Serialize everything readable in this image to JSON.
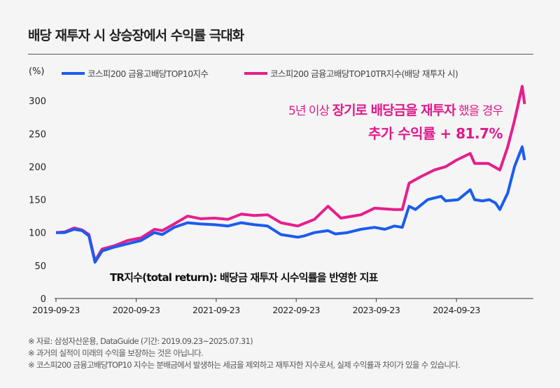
{
  "title": "배당 재투자 시 상승장에서 수익률 극대화",
  "chart_data": {
    "type": "line",
    "unit_label": "(%)",
    "ylim": [
      0,
      320
    ],
    "yticks": [
      0,
      50,
      100,
      150,
      200,
      250,
      300
    ],
    "xticks": [
      "2019-09-23",
      "2020-09-23",
      "2021-09-23",
      "2022-09-23",
      "2023-09-23",
      "2024-09-23"
    ],
    "xrange": [
      "2019-09-23",
      "2025-07-31"
    ],
    "grid": false,
    "legend": "top",
    "series": [
      {
        "name": "코스피200 금융고배당TOP10지수",
        "color": "#1a5cf0",
        "points": [
          [
            "2019-09-23",
            100
          ],
          [
            "2019-11-01",
            100
          ],
          [
            "2019-12-15",
            105
          ],
          [
            "2020-01-20",
            103
          ],
          [
            "2020-02-20",
            95
          ],
          [
            "2020-03-19",
            55
          ],
          [
            "2020-04-20",
            72
          ],
          [
            "2020-06-15",
            78
          ],
          [
            "2020-08-15",
            83
          ],
          [
            "2020-10-15",
            88
          ],
          [
            "2020-12-15",
            100
          ],
          [
            "2021-01-20",
            97
          ],
          [
            "2021-03-15",
            108
          ],
          [
            "2021-05-15",
            115
          ],
          [
            "2021-07-15",
            113
          ],
          [
            "2021-09-15",
            112
          ],
          [
            "2021-11-15",
            110
          ],
          [
            "2022-01-15",
            115
          ],
          [
            "2022-03-15",
            112
          ],
          [
            "2022-05-15",
            110
          ],
          [
            "2022-07-15",
            97
          ],
          [
            "2022-09-30",
            93
          ],
          [
            "2022-10-30",
            95
          ],
          [
            "2022-12-15",
            100
          ],
          [
            "2023-02-15",
            103
          ],
          [
            "2023-03-20",
            98
          ],
          [
            "2023-05-15",
            100
          ],
          [
            "2023-07-15",
            105
          ],
          [
            "2023-09-15",
            108
          ],
          [
            "2023-11-01",
            105
          ],
          [
            "2023-12-15",
            110
          ],
          [
            "2024-01-20",
            108
          ],
          [
            "2024-02-20",
            140
          ],
          [
            "2024-03-20",
            135
          ],
          [
            "2024-05-15",
            150
          ],
          [
            "2024-07-15",
            155
          ],
          [
            "2024-08-05",
            148
          ],
          [
            "2024-10-01",
            150
          ],
          [
            "2024-11-25",
            165
          ],
          [
            "2024-12-15",
            150
          ],
          [
            "2025-01-20",
            148
          ],
          [
            "2025-02-20",
            150
          ],
          [
            "2025-03-20",
            145
          ],
          [
            "2025-04-09",
            135
          ],
          [
            "2025-05-15",
            160
          ],
          [
            "2025-06-15",
            200
          ],
          [
            "2025-07-20",
            230
          ],
          [
            "2025-07-31",
            210
          ]
        ]
      },
      {
        "name": "코스피200 금융고배당TOP10TR지수(배당 재투자 시)",
        "color": "#e61e8c",
        "points": [
          [
            "2019-09-23",
            100
          ],
          [
            "2019-11-01",
            101
          ],
          [
            "2019-12-15",
            107
          ],
          [
            "2020-01-20",
            104
          ],
          [
            "2020-02-20",
            97
          ],
          [
            "2020-03-19",
            57
          ],
          [
            "2020-04-20",
            75
          ],
          [
            "2020-06-15",
            80
          ],
          [
            "2020-08-15",
            88
          ],
          [
            "2020-10-15",
            92
          ],
          [
            "2020-12-15",
            105
          ],
          [
            "2021-01-20",
            103
          ],
          [
            "2021-03-15",
            113
          ],
          [
            "2021-05-15",
            125
          ],
          [
            "2021-07-15",
            121
          ],
          [
            "2021-09-15",
            122
          ],
          [
            "2021-11-15",
            120
          ],
          [
            "2022-01-15",
            128
          ],
          [
            "2022-03-15",
            126
          ],
          [
            "2022-05-15",
            127
          ],
          [
            "2022-07-15",
            115
          ],
          [
            "2022-09-30",
            110
          ],
          [
            "2022-10-30",
            114
          ],
          [
            "2022-12-15",
            120
          ],
          [
            "2023-02-15",
            140
          ],
          [
            "2023-04-15",
            122
          ],
          [
            "2023-07-15",
            127
          ],
          [
            "2023-09-15",
            137
          ],
          [
            "2023-12-15",
            135
          ],
          [
            "2024-01-20",
            135
          ],
          [
            "2024-02-20",
            175
          ],
          [
            "2024-04-15",
            185
          ],
          [
            "2024-06-15",
            195
          ],
          [
            "2024-08-05",
            200
          ],
          [
            "2024-09-23",
            210
          ],
          [
            "2024-11-25",
            220
          ],
          [
            "2024-12-15",
            205
          ],
          [
            "2025-02-15",
            205
          ],
          [
            "2025-04-09",
            195
          ],
          [
            "2025-05-15",
            230
          ],
          [
            "2025-06-15",
            270
          ],
          [
            "2025-07-20",
            322
          ],
          [
            "2025-07-31",
            295
          ]
        ]
      }
    ]
  },
  "annotation": {
    "line1_pre": "5년 이상 ",
    "line1_bold": "장기로 배당금을 재투자",
    "line1_post": " 했을 경우",
    "line2": "추가 수익률 + 81.7%"
  },
  "tr_note": "TR지수(total return): 배당금 재투자 시수익률을 반영한 지표",
  "notes": [
    "※ 자료: 삼성자산운용, DataGuide (기간: 2019.09.23~2025.07.31)",
    "※ 과거의 실적이 미래의 수익을 보장하는 것은 아닙니다.",
    "※ 코스피200 금융고배당TOP10 지수는 분배금에서 발생하는 세금을 제외하고 재투자한 지수로서, 실제 수익률과 차이가 있을 수 있습니다."
  ]
}
